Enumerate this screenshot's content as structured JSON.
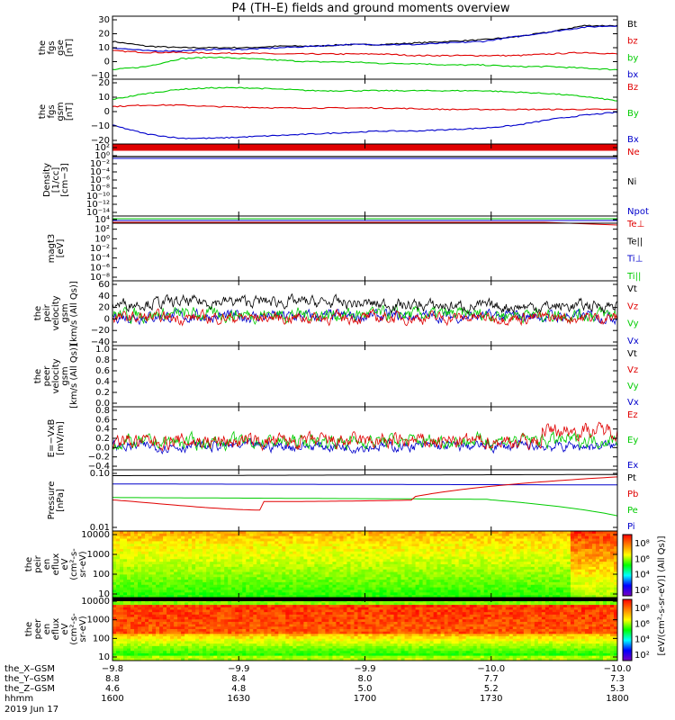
{
  "colors": {
    "black": "#000000",
    "red": "#e00000",
    "green": "#00cc00",
    "blue": "#0000cc"
  },
  "chart_data": {
    "type": "line",
    "title": "P4 (TH–E) fields and ground moments overview",
    "x_ticks": [
      "1600",
      "1630",
      "1700",
      "1730",
      "1800"
    ],
    "panels": [
      {
        "id": "fgs-gse",
        "ylabel": [
          "the",
          "fgs",
          "gse",
          "[nT]"
        ],
        "ylim": [
          -10,
          30
        ],
        "ticks": [
          "30",
          "20",
          "10",
          "0",
          "−10"
        ],
        "legend": [
          "Bt",
          "bz",
          "by",
          "bx"
        ],
        "series": [
          {
            "name": "Bt",
            "color": "black",
            "values": [
              14,
              11,
              10,
              10,
              10,
              11,
              11,
              12,
              12,
              13,
              14,
              15,
              17,
              20,
              24,
              24
            ]
          },
          {
            "name": "bz",
            "color": "red",
            "values": [
              8,
              7,
              7,
              6.5,
              6.5,
              6,
              6,
              6,
              6,
              5,
              5,
              5,
              5,
              6,
              7,
              6
            ]
          },
          {
            "name": "by",
            "color": "green",
            "values": [
              -4,
              -2,
              3,
              4,
              3,
              2,
              1,
              1,
              0,
              0,
              -1,
              -1,
              -2,
              -2,
              -3,
              -4
            ]
          },
          {
            "name": "bx",
            "color": "blue",
            "values": [
              10,
              8,
              8,
              9,
              9,
              10,
              11,
              12,
              12,
              12,
              13,
              14,
              17,
              20,
              23,
              24
            ]
          }
        ]
      },
      {
        "id": "fgs-gsm",
        "ylabel": [
          "the",
          "fgs",
          "gsm",
          "[nT]"
        ],
        "ylim": [
          -25,
          20
        ],
        "ticks": [
          "20",
          "10",
          "0",
          "−10",
          "−20"
        ],
        "legend": [
          "Bz",
          "By",
          "Bx"
        ],
        "series": [
          {
            "name": "Bz",
            "color": "red",
            "values": [
              1,
              2,
              2,
              1,
              0.5,
              0,
              0,
              0,
              0,
              -0.5,
              -1,
              -1,
              -1,
              -1,
              -1,
              -1
            ]
          },
          {
            "name": "By",
            "color": "green",
            "values": [
              6,
              10,
              13,
              14,
              14,
              13,
              12,
              12,
              12,
              12,
              12,
              12,
              11,
              10,
              8,
              5
            ]
          },
          {
            "name": "Bx",
            "color": "blue",
            "values": [
              -12,
              -18,
              -21,
              -21,
              -20,
              -19,
              -18,
              -17,
              -16,
              -16,
              -15,
              -14,
              -12,
              -8,
              -5,
              -3
            ]
          }
        ]
      },
      {
        "id": "density",
        "ylabel": [
          "Density",
          "[1/cc]",
          "[cm−3]"
        ],
        "ticks": [
          "10²",
          "10⁰",
          "10⁻²",
          "10⁻⁴",
          "10⁻⁶",
          "10⁻⁸",
          "10⁻¹⁰",
          "10⁻¹²",
          "10⁻¹⁴"
        ],
        "legend": [
          "Ne",
          "Ni",
          "Npot"
        ],
        "series": []
      },
      {
        "id": "temperature",
        "ylabel": [
          "magt3",
          "[eV]"
        ],
        "ticks": [
          "10⁴",
          "10²",
          "10⁰",
          "10⁻²",
          "10⁻⁴",
          "10⁻⁶",
          "10⁻⁸"
        ],
        "legend": [
          "Te⊥",
          "Te||",
          "Ti⊥",
          "Ti||"
        ],
        "series": []
      },
      {
        "id": "peir-velocity",
        "ylabel": [
          "the",
          "peir",
          "velocity",
          "gsm",
          "[km/s (All Qs)]"
        ],
        "ylim": [
          -40,
          60
        ],
        "ticks": [
          "60",
          "40",
          "20",
          "0",
          "−20",
          "−40"
        ],
        "legend": [
          "Vt",
          "Vz",
          "Vy",
          "Vx"
        ],
        "series": []
      },
      {
        "id": "peer-velocity",
        "ylabel": [
          "the",
          "peer",
          "velocity",
          "gsm",
          "[km/s (All Qs)]"
        ],
        "ylim": [
          0,
          1
        ],
        "ticks": [
          "1.0",
          "0.8",
          "0.6",
          "0.4",
          "0.2",
          "0.0"
        ],
        "legend": [
          "Vt",
          "Vz",
          "Vy",
          "Vx"
        ],
        "series": []
      },
      {
        "id": "efield",
        "ylabel": [
          "E=−VxB",
          "[mV/m]"
        ],
        "ylim": [
          -0.4,
          0.8
        ],
        "ticks": [
          "0.8",
          "0.6",
          "0.4",
          "0.2",
          "0.0",
          "−0.2",
          "−0.4"
        ],
        "legend": [
          "Ez",
          "Ey",
          "Ex"
        ],
        "series": []
      },
      {
        "id": "pressure",
        "ylabel": [
          "Pressure",
          "[nPa]"
        ],
        "ticks": [
          "0.10",
          "0.01"
        ],
        "legend": [
          "Pt",
          "Pb",
          "Pe",
          "Pi"
        ],
        "series": []
      },
      {
        "id": "peir-spectrogram",
        "ylabel": [
          "the",
          "peir",
          "en",
          "eflux",
          "eV",
          "(cm²-s-",
          "sr-eV)"
        ],
        "ticks": [
          "10000",
          "1000",
          "100",
          "10"
        ],
        "legend": [],
        "series": []
      },
      {
        "id": "peer-spectrogram",
        "ylabel": [
          "the",
          "peer",
          "en",
          "eflux",
          "eV",
          "(cm²-s-",
          "sr-eV)"
        ],
        "ticks": [
          "10000",
          "1000",
          "100",
          "10"
        ],
        "legend": [],
        "series": []
      }
    ],
    "colorbar": {
      "label": "[eV/(cm²‑s‑sr‑eV)] (All Qs)]",
      "ticks_top": [
        "10⁸",
        "10⁶",
        "10⁴",
        "10²"
      ],
      "ticks_bottom": [
        "10⁸",
        "10⁶",
        "10⁴",
        "10²"
      ]
    },
    "footer": {
      "rows": [
        {
          "label": "the_X–GSM",
          "values": [
            "−9.8",
            "−9.9",
            "−9.9",
            "−10.0",
            "−10.0"
          ]
        },
        {
          "label": "the_Y–GSM",
          "values": [
            "8.8",
            "8.4",
            "8.0",
            "7.7",
            "7.3"
          ]
        },
        {
          "label": "the_Z–GSM",
          "values": [
            "4.6",
            "4.8",
            "5.0",
            "5.2",
            "5.3"
          ]
        },
        {
          "label": "hhmm",
          "values": [
            "1600",
            "1630",
            "1700",
            "1730",
            "1800"
          ]
        }
      ],
      "date": "2019 Jun 17"
    }
  }
}
